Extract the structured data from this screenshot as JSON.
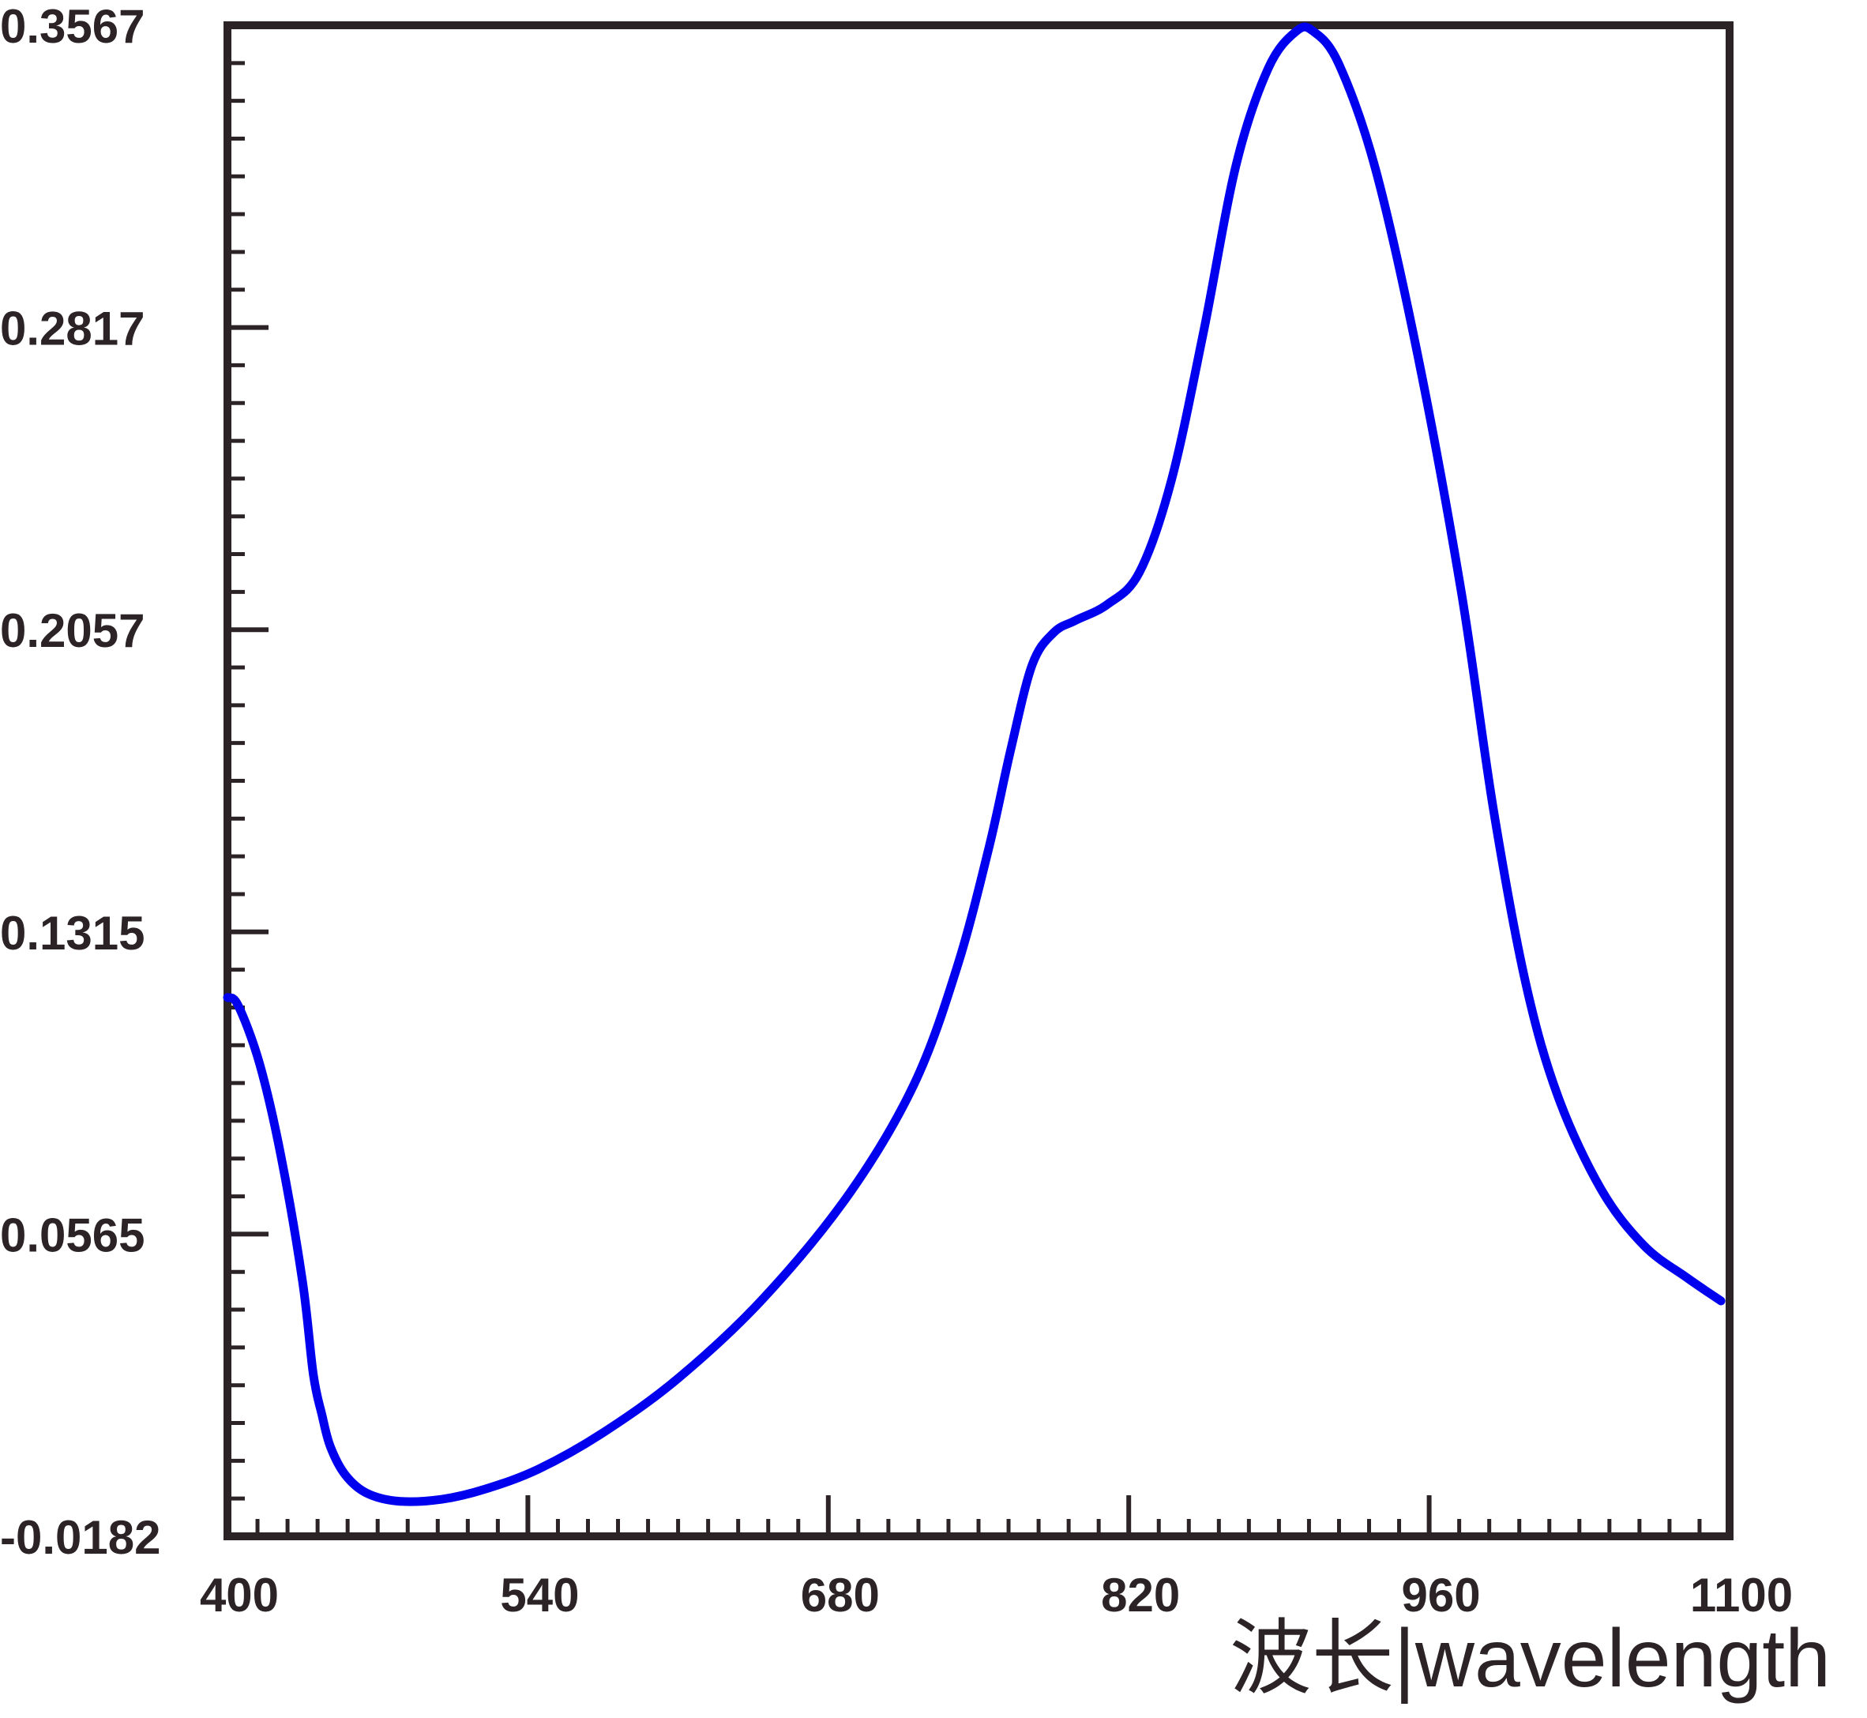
{
  "chart_data": {
    "type": "line",
    "title": "",
    "xlabel": "波长|wavelength",
    "ylabel": "",
    "xlim": [
      400,
      1100
    ],
    "ylim": [
      -0.0182,
      0.3567
    ],
    "x_ticks": [
      "400",
      "540",
      "680",
      "820",
      "960",
      "1100"
    ],
    "y_ticks": [
      "0.3567",
      "0.2817",
      "0.2057",
      "0.1315",
      "0.0565",
      "-0.0182"
    ],
    "grid": false,
    "legend": "none",
    "line_color": "#0000ee",
    "frame_color": "#2b2326",
    "series": [
      {
        "x": [
          400,
          405,
          415,
          425,
          435,
          440,
          444,
          448,
          455,
          465,
          480,
          500,
          520,
          545,
          575,
          610,
          650,
          690,
          720,
          740,
          755,
          765,
          775,
          785,
          795,
          810,
          825,
          840,
          855,
          870,
          885,
          898,
          906,
          918,
          935,
          955,
          975,
          990,
          1005,
          1020,
          1040,
          1060,
          1080,
          1096
        ],
        "y": [
          0.1155,
          0.1135,
          0.099,
          0.076,
          0.045,
          0.022,
          0.012,
          0.004,
          -0.003,
          -0.0075,
          -0.0095,
          -0.009,
          -0.0065,
          -0.0015,
          0.0075,
          0.021,
          0.041,
          0.067,
          0.094,
          0.123,
          0.153,
          0.177,
          0.198,
          0.206,
          0.209,
          0.213,
          0.221,
          0.244,
          0.281,
          0.322,
          0.346,
          0.3552,
          0.3552,
          0.347,
          0.321,
          0.274,
          0.216,
          0.162,
          0.119,
          0.091,
          0.068,
          0.054,
          0.046,
          0.0402
        ]
      }
    ]
  }
}
